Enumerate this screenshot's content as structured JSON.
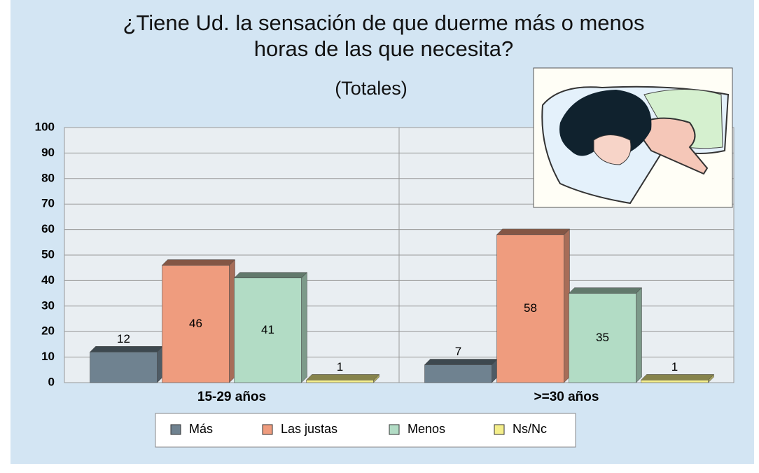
{
  "chart_data": {
    "type": "bar",
    "title": "¿Tiene Ud. la sensación de que duerme más o menos",
    "title_line2": "horas de las que necesita?",
    "subtitle": "(Totales)",
    "categories": [
      "15-29 años",
      ">=30 años"
    ],
    "series": [
      {
        "name": "Más",
        "color": "#6f8290",
        "values": [
          12,
          7
        ]
      },
      {
        "name": "Las justas",
        "color": "#ef9c7e",
        "values": [
          46,
          58
        ]
      },
      {
        "name": "Menos",
        "color": "#b2dcc5",
        "values": [
          41,
          35
        ]
      },
      {
        "name": "Ns/Nc",
        "color": "#f4ee8a",
        "values": [
          1,
          1
        ]
      }
    ],
    "ylim": [
      0,
      100
    ],
    "yticks": [
      0,
      10,
      20,
      30,
      40,
      50,
      60,
      70,
      80,
      90,
      100
    ],
    "grid": true,
    "legend": "bottom"
  }
}
